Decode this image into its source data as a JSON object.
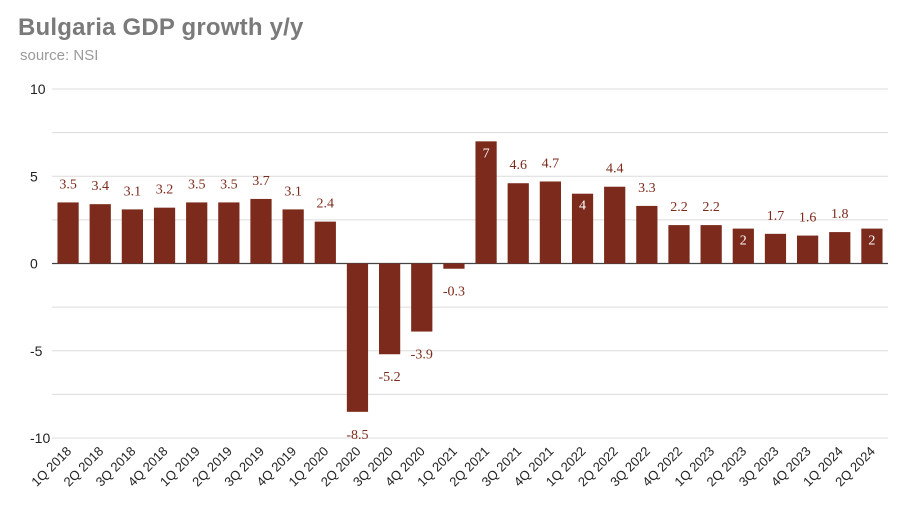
{
  "header": {
    "title": "Bulgaria GDP growth y/y",
    "subtitle": "source: NSI"
  },
  "colors": {
    "bar": "#7b2a1b",
    "label": "#7b2a1b",
    "inside_label": "#ffffff",
    "grid": "#dcdcdc",
    "axis_text": "#222222"
  },
  "chart_data": {
    "type": "bar",
    "title": "Bulgaria GDP growth y/y",
    "subtitle": "source: NSI",
    "categories": [
      "1Q 2018",
      "2Q 2018",
      "3Q 2018",
      "4Q 2018",
      "1Q 2019",
      "2Q 2019",
      "3Q 2019",
      "4Q 2019",
      "1Q 2020",
      "2Q 2020",
      "3Q 2020",
      "4Q 2020",
      "1Q 2021",
      "2Q 2021",
      "3Q 2021",
      "4Q 2021",
      "1Q 2022",
      "2Q 2022",
      "3Q 2022",
      "4Q 2022",
      "1Q 2023",
      "2Q 2023",
      "3Q 2023",
      "4Q 2023",
      "1Q 2024",
      "2Q 2024"
    ],
    "values": [
      3.5,
      3.4,
      3.1,
      3.2,
      3.5,
      3.5,
      3.7,
      3.1,
      2.4,
      -8.5,
      -5.2,
      -3.9,
      -0.3,
      7,
      4.6,
      4.7,
      4,
      4.4,
      3.3,
      2.2,
      2.2,
      2,
      1.7,
      1.6,
      1.8,
      2
    ],
    "value_labels": [
      "3.5",
      "3.4",
      "3.1",
      "3.2",
      "3.5",
      "3.5",
      "3.7",
      "3.1",
      "2.4",
      "-8.5",
      "-5.2",
      "-3.9",
      "-0.3",
      "7",
      "4.6",
      "4.7",
      "4",
      "4.4",
      "3.3",
      "2.2",
      "2.2",
      "2",
      "1.7",
      "1.6",
      "1.8",
      "2"
    ],
    "labels_inside": [
      13,
      16,
      21,
      25
    ],
    "xlabel": "",
    "ylabel": "",
    "ylim": [
      -10,
      10
    ],
    "yticks": [
      10,
      5,
      0,
      -5,
      -10
    ],
    "grid": true,
    "legend": "none"
  }
}
